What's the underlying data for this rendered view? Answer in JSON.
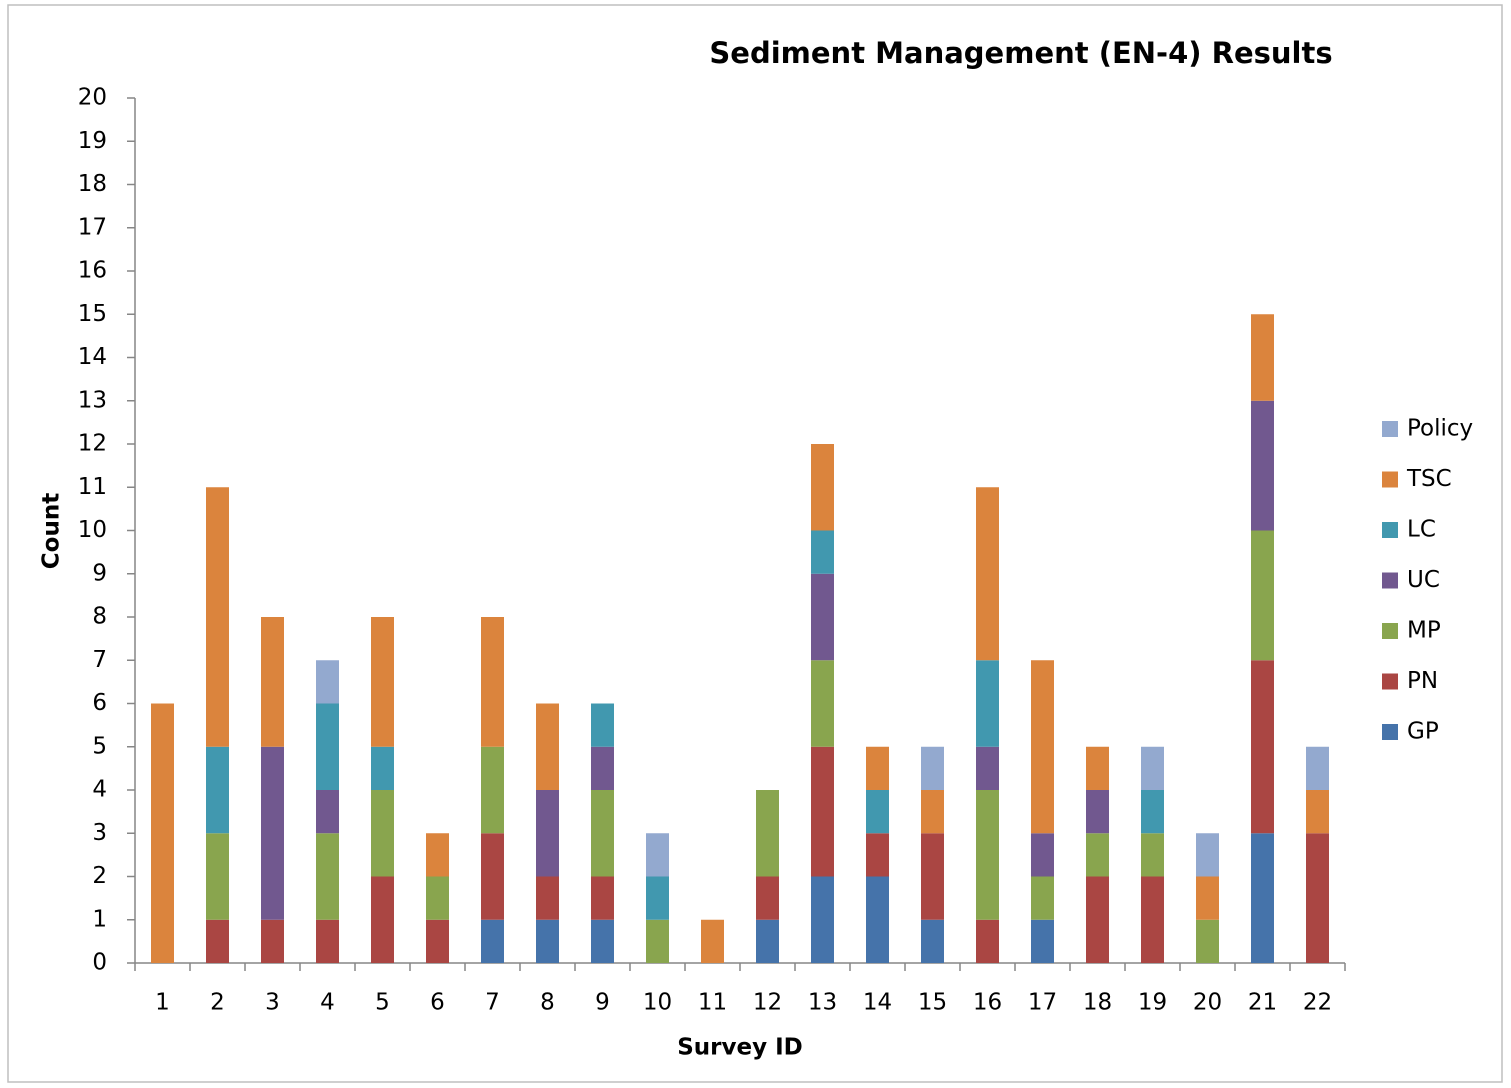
{
  "chart_data": {
    "type": "bar",
    "stacked": true,
    "title": "Sediment Management (EN-4) Results",
    "x_label": "Survey ID",
    "y_label": "Count",
    "categories": [
      "1",
      "2",
      "3",
      "4",
      "5",
      "6",
      "7",
      "8",
      "9",
      "10",
      "11",
      "12",
      "13",
      "14",
      "15",
      "16",
      "17",
      "18",
      "19",
      "20",
      "21",
      "22"
    ],
    "series": [
      {
        "name": "GP",
        "color": "#4573aa",
        "values": [
          0,
          0,
          0,
          0,
          0,
          0,
          1,
          1,
          1,
          0,
          0,
          1,
          2,
          2,
          1,
          0,
          1,
          0,
          0,
          0,
          3,
          0
        ]
      },
      {
        "name": "PN",
        "color": "#aa4643",
        "values": [
          0,
          1,
          1,
          1,
          2,
          1,
          2,
          1,
          1,
          0,
          0,
          1,
          3,
          1,
          2,
          1,
          0,
          2,
          2,
          0,
          4,
          3
        ]
      },
      {
        "name": "MP",
        "color": "#89a54e",
        "values": [
          0,
          2,
          0,
          2,
          2,
          1,
          2,
          0,
          2,
          1,
          0,
          2,
          2,
          0,
          0,
          3,
          1,
          1,
          1,
          1,
          3,
          0
        ]
      },
      {
        "name": "UC",
        "color": "#71588f",
        "values": [
          0,
          0,
          4,
          1,
          0,
          0,
          0,
          2,
          1,
          0,
          0,
          0,
          2,
          0,
          0,
          1,
          1,
          1,
          0,
          0,
          3,
          0
        ]
      },
      {
        "name": "LC",
        "color": "#4198af",
        "values": [
          0,
          2,
          0,
          2,
          1,
          0,
          0,
          0,
          1,
          1,
          0,
          0,
          1,
          1,
          0,
          2,
          0,
          0,
          1,
          0,
          0,
          0
        ]
      },
      {
        "name": "TSC",
        "color": "#db843d",
        "values": [
          6,
          6,
          3,
          0,
          3,
          1,
          3,
          2,
          0,
          0,
          1,
          0,
          2,
          1,
          1,
          4,
          4,
          1,
          0,
          1,
          2,
          1
        ]
      },
      {
        "name": "Policy",
        "color": "#93a9cf",
        "values": [
          0,
          0,
          0,
          1,
          0,
          0,
          0,
          0,
          0,
          1,
          0,
          0,
          0,
          0,
          1,
          0,
          0,
          0,
          1,
          1,
          0,
          1
        ]
      }
    ],
    "ylim": [
      0,
      20
    ],
    "yticks": [
      0,
      1,
      2,
      3,
      4,
      5,
      6,
      7,
      8,
      9,
      10,
      11,
      12,
      13,
      14,
      15,
      16,
      17,
      18,
      19,
      20
    ],
    "grid": false,
    "legend": "right"
  }
}
